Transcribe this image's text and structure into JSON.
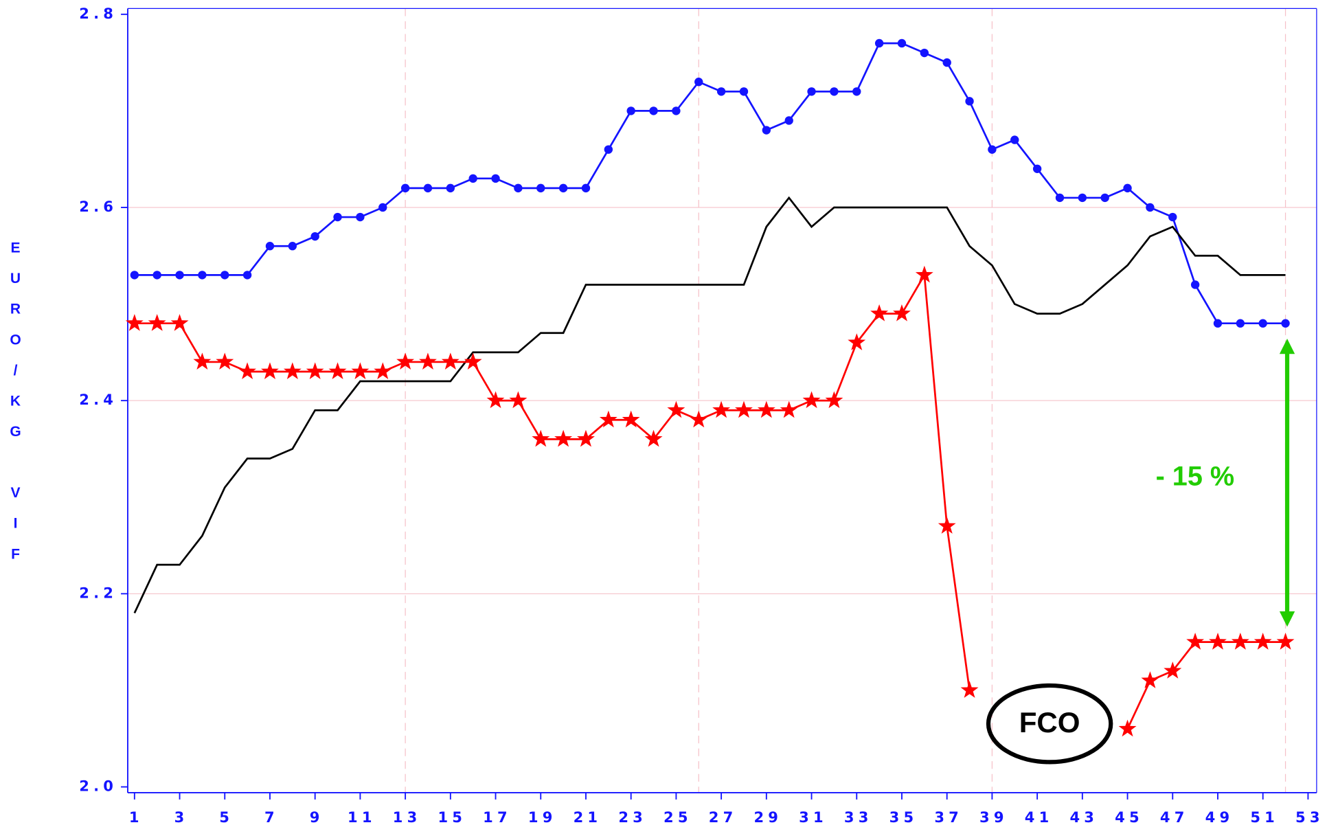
{
  "chart_data": {
    "type": "line",
    "ylabel": "EURO/KG VIF",
    "x": [
      1,
      2,
      3,
      4,
      5,
      6,
      7,
      8,
      9,
      10,
      11,
      12,
      13,
      14,
      15,
      16,
      17,
      18,
      19,
      20,
      21,
      22,
      23,
      24,
      25,
      26,
      27,
      28,
      29,
      30,
      31,
      32,
      33,
      34,
      35,
      36,
      37,
      38,
      39,
      40,
      41,
      42,
      43,
      44,
      45,
      46,
      47,
      48,
      49,
      50,
      51,
      52
    ],
    "series": [
      {
        "color": "#1414ff",
        "marker": "circle",
        "values": [
          2.53,
          2.53,
          2.53,
          2.53,
          2.53,
          2.53,
          2.56,
          2.56,
          2.57,
          2.59,
          2.59,
          2.6,
          2.62,
          2.62,
          2.62,
          2.63,
          2.63,
          2.62,
          2.62,
          2.62,
          2.62,
          2.66,
          2.7,
          2.7,
          2.7,
          2.73,
          2.72,
          2.72,
          2.68,
          2.69,
          2.72,
          2.72,
          2.72,
          2.77,
          2.77,
          2.76,
          2.75,
          2.71,
          2.66,
          2.67,
          2.64,
          2.61,
          2.61,
          2.61,
          2.62,
          2.6,
          2.59,
          2.52,
          2.48,
          2.48,
          2.48,
          2.48
        ]
      },
      {
        "color": "#000000",
        "marker": "none",
        "values": [
          2.18,
          2.23,
          2.23,
          2.26,
          2.31,
          2.34,
          2.34,
          2.35,
          2.39,
          2.39,
          2.42,
          2.42,
          2.42,
          2.42,
          2.42,
          2.45,
          2.45,
          2.45,
          2.47,
          2.47,
          2.52,
          2.52,
          2.52,
          2.52,
          2.52,
          2.52,
          2.52,
          2.52,
          2.58,
          2.61,
          2.58,
          2.6,
          2.6,
          2.6,
          2.6,
          2.6,
          2.6,
          2.56,
          2.54,
          2.5,
          2.49,
          2.49,
          2.5,
          2.52,
          2.54,
          2.57,
          2.58,
          2.55,
          2.55,
          2.53,
          2.53,
          2.53
        ]
      },
      {
        "color": "#ff0000",
        "marker": "star",
        "values": [
          2.48,
          2.48,
          2.48,
          2.44,
          2.44,
          2.43,
          2.43,
          2.43,
          2.43,
          2.43,
          2.43,
          2.43,
          2.44,
          2.44,
          2.44,
          2.44,
          2.4,
          2.4,
          2.36,
          2.36,
          2.36,
          2.38,
          2.38,
          2.36,
          2.39,
          2.38,
          2.39,
          2.39,
          2.39,
          2.39,
          2.4,
          2.4,
          2.46,
          2.49,
          2.49,
          2.53,
          2.27,
          2.1,
          null,
          null,
          null,
          null,
          null,
          null,
          2.06,
          2.11,
          2.12,
          2.15,
          2.15,
          2.15,
          2.15,
          2.15
        ]
      }
    ],
    "xlim": [
      0.7,
      53.38
    ],
    "xticks": [
      1,
      3,
      5,
      7,
      9,
      11,
      13,
      15,
      17,
      19,
      21,
      23,
      25,
      27,
      29,
      31,
      33,
      35,
      37,
      39,
      41,
      43,
      45,
      47,
      49,
      51,
      53
    ],
    "xgrid": [
      13,
      26,
      39,
      52
    ],
    "ylim": [
      1.994,
      2.806
    ],
    "yticks": [
      {
        "value": 2,
        "label": "2.0"
      },
      2.2,
      2.4,
      2.6,
      2.8
    ],
    "grid": true,
    "annotations": [
      {
        "text": "- 15 %",
        "color": "#22cc00"
      },
      {
        "text": "FCO",
        "color": "#000000"
      }
    ]
  }
}
